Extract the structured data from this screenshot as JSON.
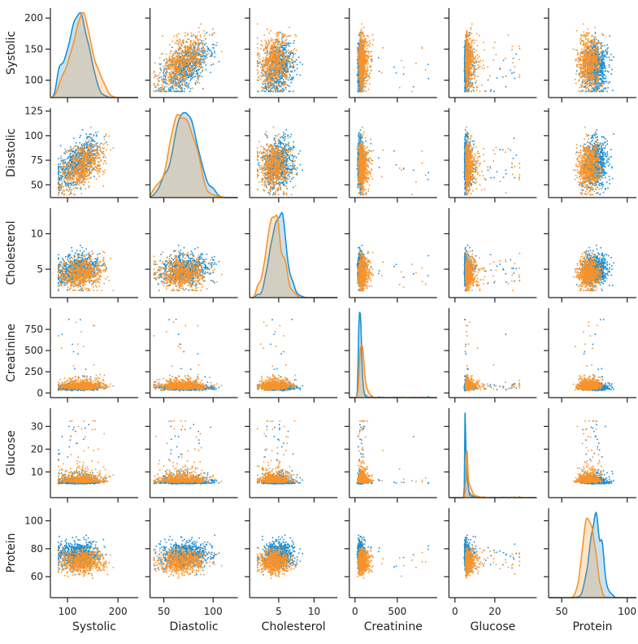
{
  "chart_data": {
    "type": "scatter",
    "kind": "pairplot",
    "variables": [
      "Systolic",
      "Diastolic",
      "Cholesterol",
      "Creatinine",
      "Glucose",
      "Protein"
    ],
    "axes": {
      "Systolic": {
        "range": [
          66,
          240
        ],
        "ticks": [
          100,
          200
        ],
        "row_ticks": [
          100,
          150,
          200
        ],
        "row_range": [
          72,
          216
        ]
      },
      "Diastolic": {
        "range": [
          36,
          125
        ],
        "ticks": [
          50,
          100
        ],
        "row_ticks": [
          50,
          75,
          100,
          125
        ],
        "row_range": [
          37,
          128
        ]
      },
      "Cholesterol": {
        "range": [
          0.9,
          13.3
        ],
        "ticks": [
          5,
          10
        ],
        "row_ticks": [
          5,
          10
        ],
        "row_range": [
          1,
          13.6
        ]
      },
      "Creatinine": {
        "range": [
          -67,
          970
        ],
        "ticks": [
          0,
          500
        ],
        "row_ticks": [
          0,
          250,
          500,
          750
        ],
        "row_range": [
          -55,
          1000
        ]
      },
      "Glucose": {
        "range": [
          -3,
          41
        ],
        "ticks": [
          0,
          20
        ],
        "row_ticks": [
          10,
          20,
          30
        ],
        "row_range": [
          -1.3,
          38
        ]
      },
      "Protein": {
        "range": [
          40,
          107
        ],
        "ticks": [
          50,
          100
        ],
        "row_ticks": [
          60,
          80,
          100
        ],
        "row_range": [
          45,
          109
        ]
      }
    },
    "series": [
      {
        "color": "#1a8fd6",
        "n_points": 700,
        "mean": {
          "Systolic": 120,
          "Diastolic": 72,
          "Cholesterol": 5.0,
          "Creatinine": 60,
          "Glucose": 5.3,
          "Protein": 76
        },
        "sd": {
          "Systolic": 20,
          "Diastolic": 12,
          "Cholesterol": 1.1,
          "Creatinine": 0.3,
          "Glucose": 0.22,
          "Protein": 4.5
        }
      },
      {
        "color": "#f7932b",
        "n_points": 700,
        "mean": {
          "Systolic": 128,
          "Diastolic": 68,
          "Cholesterol": 4.4,
          "Creatinine": 85,
          "Glucose": 6.2,
          "Protein": 71
        },
        "sd": {
          "Systolic": 22,
          "Diastolic": 12,
          "Cholesterol": 1.1,
          "Creatinine": 0.35,
          "Glucose": 0.28,
          "Protein": 4.5
        }
      }
    ],
    "diagonal": "kde",
    "grid": false,
    "legend": "none"
  }
}
